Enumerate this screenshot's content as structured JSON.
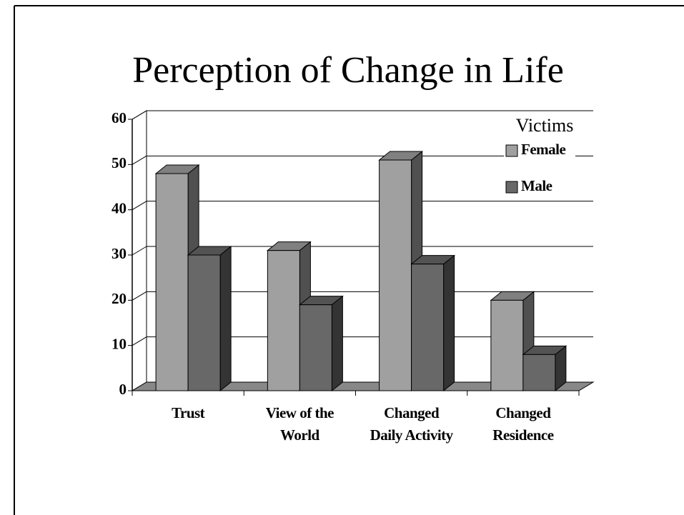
{
  "chart_data": {
    "type": "bar3d",
    "title": "Perception of Change in Life",
    "categories": [
      [
        "Trust"
      ],
      [
        "View of the",
        "World"
      ],
      [
        "Changed",
        "Daily Activity"
      ],
      [
        "Changed",
        "Residence"
      ]
    ],
    "legend_title": "Victims",
    "series": [
      {
        "name": "Female",
        "color": "#a0a0a0",
        "values": [
          48,
          31,
          51,
          20
        ]
      },
      {
        "name": "Male",
        "color": "#686868",
        "values": [
          30,
          19,
          28,
          8
        ]
      }
    ],
    "ylim": [
      0,
      60
    ],
    "yticks": [
      0,
      10,
      20,
      30,
      40,
      50,
      60
    ],
    "grid": true
  }
}
